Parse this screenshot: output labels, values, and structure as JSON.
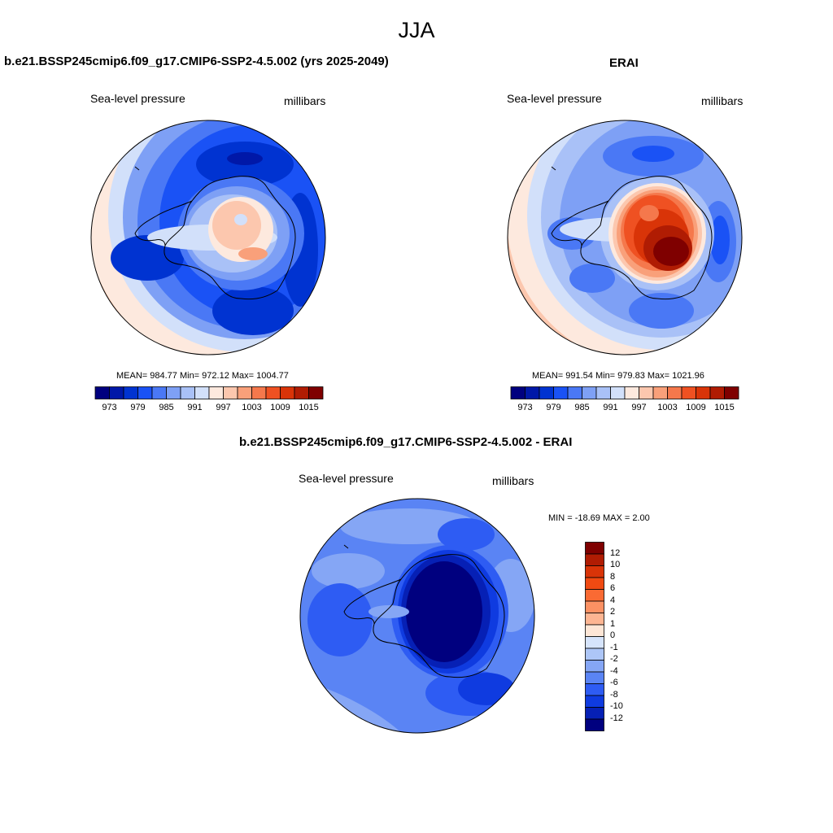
{
  "page": {
    "title": "JJA"
  },
  "panels": {
    "model": {
      "title": "b.e21.BSSP245cmip6.f09_g17.CMIP6-SSP2-4.5.002 (yrs 2025-2049)",
      "left_label": "Sea-level pressure",
      "right_label": "millibars",
      "stats": "MEAN= 984.77  Min= 972.12  Max= 1004.77"
    },
    "obs": {
      "title": "ERAI",
      "left_label": "Sea-level pressure",
      "right_label": "millibars",
      "stats": "MEAN= 991.54  Min= 979.83  Max= 1021.96"
    },
    "diff": {
      "title": "b.e21.BSSP245cmip6.f09_g17.CMIP6-SSP2-4.5.002 - ERAI",
      "left_label": "Sea-level pressure",
      "right_label": "millibars",
      "stats": "MIN = -18.69 MAX =   2.00"
    }
  },
  "colorbars": {
    "abs": {
      "colors": [
        "#00007f",
        "#0018a8",
        "#0033d1",
        "#1a52f5",
        "#4a78f5",
        "#7ea0f5",
        "#a9c1f7",
        "#d2e0fa",
        "#fde9de",
        "#fcc7ae",
        "#f9a07a",
        "#f5784c",
        "#ef5122",
        "#d93408",
        "#b01c03",
        "#7f0000"
      ],
      "tick_labels": [
        "973",
        "979",
        "985",
        "991",
        "997",
        "1003",
        "1009",
        "1015"
      ]
    },
    "diff": {
      "colors": [
        "#7f0000",
        "#b01c03",
        "#d93408",
        "#f04a12",
        "#fa6a33",
        "#fc9163",
        "#fdb592",
        "#fde6d6",
        "#d6e4fb",
        "#adc6f7",
        "#85a6f5",
        "#5a84f4",
        "#2e5cf3",
        "#0f3be0",
        "#0620b5",
        "#00007f"
      ],
      "tick_labels": [
        "12",
        "10",
        "8",
        "6",
        "4",
        "2",
        "1",
        "0",
        "-1",
        "-2",
        "-4",
        "-6",
        "-8",
        "-10",
        "-12"
      ]
    }
  }
}
